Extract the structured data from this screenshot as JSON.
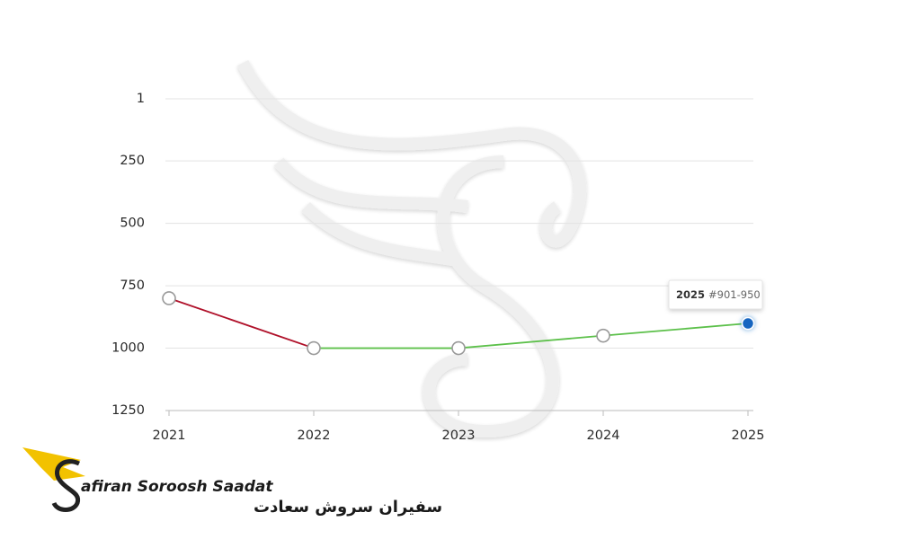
{
  "chart_data": {
    "type": "line",
    "categories": [
      "2021",
      "2022",
      "2023",
      "2024",
      "2025"
    ],
    "values": [
      800,
      1000,
      1000,
      950,
      901
    ],
    "ylim": [
      1,
      1250
    ],
    "yticks": [
      1,
      250,
      500,
      750,
      1000,
      1250
    ],
    "y_inverted": true,
    "grid": true,
    "color_rising": "#b0112a",
    "color_falling": "#5cc04a",
    "highlight_color": "#1565c0",
    "tooltip": {
      "category": 4,
      "text": "#901-950"
    }
  },
  "logo": {
    "name": "afiran Soroosh Saadat",
    "name_fa": "سفیران سروش سعادت"
  }
}
